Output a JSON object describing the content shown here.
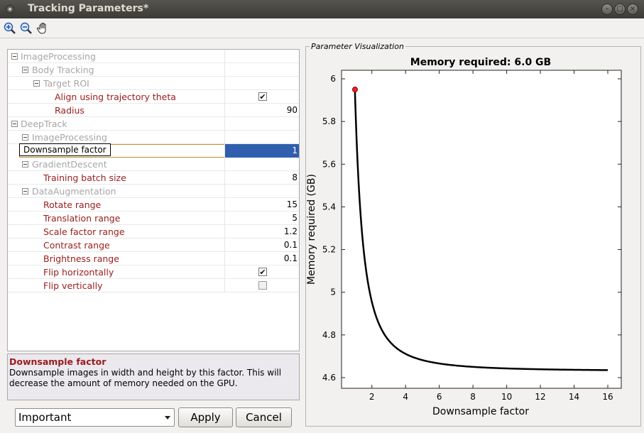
{
  "window": {
    "title": "Tracking Parameters*"
  },
  "grid": {
    "rows": [
      {
        "label": "ImageProcessing",
        "kind": "group"
      },
      {
        "label": "Body Tracking",
        "kind": "group"
      },
      {
        "label": "Target ROI",
        "kind": "group"
      },
      {
        "label": "Align using trajectory theta",
        "kind": "param",
        "value": true
      },
      {
        "label": "Radius",
        "kind": "param",
        "value": "90"
      },
      {
        "label": "DeepTrack",
        "kind": "group"
      },
      {
        "label": "ImageProcessing",
        "kind": "group"
      },
      {
        "label": "Downsample factor",
        "kind": "param",
        "value": "1",
        "visible_suffix": "or"
      },
      {
        "label": "GradientDescent",
        "kind": "group"
      },
      {
        "label": "Training batch size",
        "kind": "param",
        "value": "8"
      },
      {
        "label": "DataAugmentation",
        "kind": "group"
      },
      {
        "label": "Rotate range",
        "kind": "param",
        "value": "15"
      },
      {
        "label": "Translation range",
        "kind": "param",
        "value": "5"
      },
      {
        "label": "Scale factor range",
        "kind": "param",
        "value": "1.2"
      },
      {
        "label": "Contrast range",
        "kind": "param",
        "value": "0.1"
      },
      {
        "label": "Brightness range",
        "kind": "param",
        "value": "0.1"
      },
      {
        "label": "Flip horizontally",
        "kind": "param",
        "value": true
      },
      {
        "label": "Flip vertically",
        "kind": "param",
        "value": false
      }
    ]
  },
  "description": {
    "title": "Downsample factor",
    "text": "Downsample images in width and height by this factor. This will decrease the amount of memory needed on the GPU."
  },
  "controls": {
    "level_select": "Important",
    "apply_label": "Apply",
    "cancel_label": "Cancel"
  },
  "visualization": {
    "panel_title": "Parameter Visualization"
  },
  "chart_data": {
    "type": "line",
    "title": "Memory required: 6.0 GB",
    "xlabel": "Downsample factor",
    "ylabel": "Memory required (GB)",
    "xlim": [
      0.2,
      16.8
    ],
    "ylim": [
      4.55,
      6.04
    ],
    "xticks": [
      2,
      4,
      6,
      8,
      10,
      12,
      14,
      16
    ],
    "yticks": [
      4.6,
      4.8,
      5,
      5.2,
      5.4,
      5.6,
      5.8,
      6
    ],
    "ytick_labels": [
      "4.6",
      "4.8",
      "5",
      "5.2",
      "5.4",
      "5.6",
      "5.8",
      "6"
    ],
    "model": {
      "a": 4.63,
      "b": 1.3
    },
    "highlight": {
      "x": 1,
      "y": 5.95,
      "color": "#e8262b"
    },
    "line_color": "#000000",
    "grid": false
  }
}
